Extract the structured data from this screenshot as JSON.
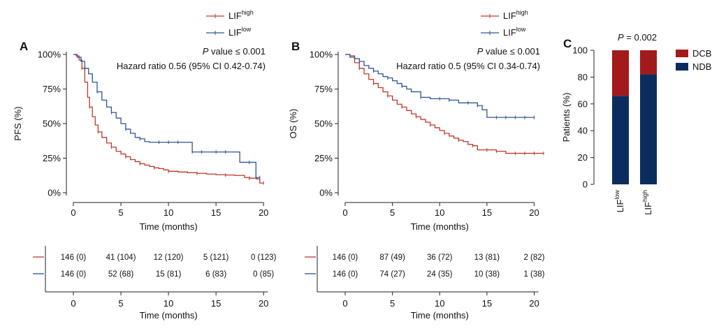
{
  "colors": {
    "high": "#c0392b",
    "low": "#2c5596",
    "dcb": "#a31a1a",
    "ndb": "#0b2d5e",
    "axis": "#222222"
  },
  "chart_data": [
    {
      "type": "line",
      "panel_label": "A",
      "ylabel": "PFS (%)",
      "xlabel": "Time (months)",
      "xlim": [
        0,
        20.5
      ],
      "ylim": [
        0,
        100
      ],
      "xticks": [
        0,
        5,
        10,
        15,
        20
      ],
      "xtick_labels": [
        "0",
        "5",
        "10",
        "15",
        "20"
      ],
      "yticks": [
        0,
        25,
        50,
        75,
        100
      ],
      "ytick_labels": [
        "0%",
        "25%",
        "50%",
        "75%",
        "100%"
      ],
      "annotation_p_italic": "P",
      "annotation_p_rest": " value ≤ 0.001",
      "annotation_hr": "Hazard ratio 0.56 (95% CI 0.42-0.74)",
      "legend": [
        {
          "base": "LIF",
          "sup": "high",
          "key": "high"
        },
        {
          "base": "LIF",
          "sup": "low",
          "key": "low"
        }
      ],
      "series": [
        {
          "key": "high",
          "x": [
            0,
            0.3,
            0.6,
            0.9,
            1.2,
            1.5,
            1.7,
            2.0,
            2.3,
            2.6,
            3.0,
            3.5,
            4.0,
            4.5,
            5.0,
            5.5,
            6.0,
            6.5,
            7.0,
            7.5,
            8.0,
            8.5,
            9.0,
            9.5,
            10.0,
            11.0,
            12.0,
            13.0,
            14.0,
            15.0,
            16.0,
            17.0,
            18.0,
            18.5,
            19.3,
            19.6,
            20.0
          ],
          "y": [
            100,
            99,
            96,
            90,
            80,
            69,
            62,
            55,
            49,
            44,
            40,
            36,
            33,
            30,
            28,
            26,
            24,
            22.5,
            21,
            20,
            19,
            18,
            17.5,
            16.5,
            15.5,
            15,
            14.5,
            14,
            13.5,
            13,
            12.8,
            12.5,
            11,
            10.5,
            10,
            7,
            7
          ]
        },
        {
          "key": "low",
          "x": [
            0,
            0.4,
            0.8,
            1.2,
            1.6,
            2.0,
            2.5,
            3.0,
            3.5,
            4.0,
            4.5,
            5.0,
            5.5,
            6.0,
            6.5,
            7.0,
            7.5,
            8.0,
            9.0,
            10.0,
            11.0,
            12.5,
            13.5,
            15.0,
            16.0,
            17.5,
            18.5,
            19.2,
            19.6
          ],
          "y": [
            100,
            98,
            95,
            90,
            86,
            80,
            73,
            67,
            62,
            58,
            54,
            50,
            46,
            43,
            40,
            39,
            37,
            36.5,
            36.5,
            36.5,
            36.5,
            29.5,
            29.5,
            29.5,
            29.5,
            22,
            22,
            11,
            11
          ]
        }
      ],
      "risk_table": {
        "times": [
          "0",
          "5",
          "10",
          "15",
          "20"
        ],
        "rows": [
          {
            "key": "high",
            "values": [
              "146 (0)",
              "41 (104)",
              "12 (120)",
              "5 (121)",
              "0 (123)"
            ]
          },
          {
            "key": "low",
            "values": [
              "146 (0)",
              "52 (68)",
              "15 (81)",
              "6 (83)",
              "0 (85)"
            ]
          }
        ],
        "xlabel": "Time (months)"
      }
    },
    {
      "type": "line",
      "panel_label": "B",
      "ylabel": "OS (%)",
      "xlabel": "Time (months)",
      "xlim": [
        0,
        21
      ],
      "ylim": [
        0,
        100
      ],
      "xticks": [
        0,
        5,
        10,
        15,
        20
      ],
      "xtick_labels": [
        "0",
        "5",
        "10",
        "15",
        "20"
      ],
      "yticks": [
        0,
        25,
        50,
        75,
        100
      ],
      "ytick_labels": [
        "0%",
        "25%",
        "50%",
        "75%",
        "100%"
      ],
      "annotation_p_italic": "P",
      "annotation_p_rest": " value ≤ 0.001",
      "annotation_hr": "Hazard ratio 0.5 (95% CI 0.34-0.74)",
      "legend": [
        {
          "base": "LIF",
          "sup": "high",
          "key": "high"
        },
        {
          "base": "LIF",
          "sup": "low",
          "key": "low"
        }
      ],
      "series": [
        {
          "key": "high",
          "x": [
            0,
            0.5,
            1.0,
            1.5,
            2.0,
            2.5,
            3.0,
            3.5,
            4.0,
            4.5,
            5.0,
            5.5,
            6.0,
            6.5,
            7.0,
            7.5,
            8.0,
            8.5,
            9.0,
            9.5,
            10.0,
            10.5,
            11.0,
            11.5,
            12.0,
            12.5,
            13.0,
            13.5,
            14.0,
            15.0,
            16.0,
            17.0,
            18.0,
            19.0,
            20.0,
            21.0
          ],
          "y": [
            100,
            98,
            94,
            90,
            86,
            82,
            79,
            76,
            73,
            70,
            67,
            64,
            62,
            59.5,
            57,
            55,
            53,
            51,
            49,
            47,
            45,
            43,
            41,
            39.5,
            38,
            37,
            35,
            34,
            31,
            31,
            30,
            28.5,
            28.5,
            28.5,
            28.5,
            28.5
          ]
        },
        {
          "key": "low",
          "x": [
            0,
            0.5,
            1.0,
            1.5,
            2.0,
            2.5,
            3.0,
            3.5,
            4.0,
            4.5,
            5.0,
            5.5,
            6.0,
            6.5,
            7.0,
            8.0,
            9.0,
            10.0,
            11.0,
            12.0,
            13.0,
            14.0,
            14.5,
            15.0,
            16.0,
            17.0,
            18.0,
            19.0,
            20.0
          ],
          "y": [
            100,
            99,
            97,
            95,
            92,
            90,
            88,
            86,
            84,
            83,
            81,
            79,
            77,
            75,
            73,
            69,
            68,
            68,
            67,
            65,
            65,
            63,
            60,
            54.5,
            54.5,
            54.5,
            54.5,
            54.5,
            54.5
          ]
        }
      ],
      "risk_table": {
        "times": [
          "0",
          "5",
          "10",
          "15",
          "20"
        ],
        "rows": [
          {
            "key": "high",
            "values": [
              "146 (0)",
              "87 (49)",
              "36 (72)",
              "13 (81)",
              "2 (82)"
            ]
          },
          {
            "key": "low",
            "values": [
              "146 (0)",
              "74 (27)",
              "24 (35)",
              "10 (38)",
              "1 (38)"
            ]
          }
        ],
        "xlabel": "Time (months)"
      }
    },
    {
      "type": "bar",
      "panel_label": "C",
      "ylabel": "Patients (%)",
      "ylim": [
        0,
        100
      ],
      "yticks": [
        0,
        20,
        40,
        60,
        80,
        100
      ],
      "ytick_labels": [
        "0",
        "20",
        "40",
        "60",
        "80",
        "100"
      ],
      "annotation_p_italic": "P",
      "annotation_p_rest": " = 0.002",
      "categories": [
        {
          "base": "LIF",
          "sup": "low"
        },
        {
          "base": "LIF",
          "sup": "high"
        }
      ],
      "series": [
        {
          "name": "NDB",
          "key": "ndb",
          "values": [
            66,
            82
          ]
        },
        {
          "name": "DCB",
          "key": "dcb",
          "values": [
            34,
            18
          ]
        }
      ],
      "legend": [
        {
          "name": "DCB",
          "key": "dcb"
        },
        {
          "name": "NDB",
          "key": "ndb"
        }
      ]
    }
  ]
}
